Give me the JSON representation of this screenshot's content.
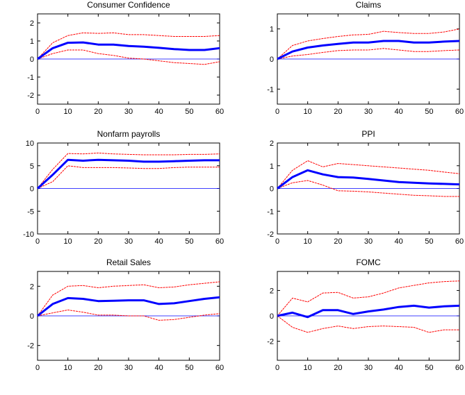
{
  "chart_data": [
    {
      "type": "line",
      "title": "Consumer Confidence",
      "xlim": [
        0,
        60
      ],
      "ylim": [
        -2.5,
        2.5
      ],
      "xticks": [
        0,
        10,
        20,
        30,
        40,
        50,
        60
      ],
      "yticks": [
        -2,
        -1,
        0,
        1,
        2
      ],
      "series": [
        {
          "role": "estimate",
          "color": "#0000ff",
          "x": [
            0,
            5,
            10,
            15,
            20,
            25,
            30,
            35,
            40,
            45,
            50,
            55,
            60
          ],
          "y": [
            0,
            0.6,
            0.9,
            0.92,
            0.8,
            0.8,
            0.72,
            0.68,
            0.62,
            0.55,
            0.5,
            0.5,
            0.6
          ]
        },
        {
          "role": "upper",
          "color": "#ff0000",
          "x": [
            0,
            5,
            10,
            15,
            20,
            25,
            30,
            35,
            40,
            45,
            50,
            55,
            60
          ],
          "y": [
            0,
            0.9,
            1.3,
            1.45,
            1.42,
            1.45,
            1.35,
            1.35,
            1.3,
            1.25,
            1.25,
            1.25,
            1.3
          ]
        },
        {
          "role": "lower",
          "color": "#ff0000",
          "x": [
            0,
            5,
            10,
            15,
            20,
            25,
            30,
            35,
            40,
            45,
            50,
            55,
            60
          ],
          "y": [
            0,
            0.3,
            0.5,
            0.5,
            0.3,
            0.2,
            0.05,
            0.0,
            -0.1,
            -0.2,
            -0.25,
            -0.3,
            -0.15
          ]
        }
      ]
    },
    {
      "type": "line",
      "title": "Claims",
      "xlim": [
        0,
        60
      ],
      "ylim": [
        -1.5,
        1.5
      ],
      "xticks": [
        0,
        10,
        20,
        30,
        40,
        50,
        60
      ],
      "yticks": [
        -1,
        0,
        1
      ],
      "series": [
        {
          "role": "estimate",
          "color": "#0000ff",
          "x": [
            0,
            5,
            10,
            15,
            20,
            25,
            30,
            35,
            40,
            45,
            50,
            55,
            60
          ],
          "y": [
            0,
            0.25,
            0.38,
            0.45,
            0.5,
            0.55,
            0.55,
            0.6,
            0.6,
            0.55,
            0.55,
            0.58,
            0.6
          ]
        },
        {
          "role": "upper",
          "color": "#ff0000",
          "x": [
            0,
            5,
            10,
            15,
            20,
            25,
            30,
            35,
            40,
            45,
            50,
            55,
            60
          ],
          "y": [
            0,
            0.45,
            0.6,
            0.68,
            0.75,
            0.8,
            0.82,
            0.92,
            0.88,
            0.85,
            0.85,
            0.9,
            1.0
          ]
        },
        {
          "role": "lower",
          "color": "#ff0000",
          "x": [
            0,
            5,
            10,
            15,
            20,
            25,
            30,
            35,
            40,
            45,
            50,
            55,
            60
          ],
          "y": [
            0,
            0.1,
            0.15,
            0.22,
            0.28,
            0.3,
            0.3,
            0.35,
            0.3,
            0.25,
            0.25,
            0.28,
            0.3
          ]
        }
      ]
    },
    {
      "type": "line",
      "title": "Nonfarm payrolls",
      "xlim": [
        0,
        60
      ],
      "ylim": [
        -10,
        10
      ],
      "xticks": [
        0,
        10,
        20,
        30,
        40,
        50,
        60
      ],
      "yticks": [
        -10,
        -5,
        0,
        5,
        10
      ],
      "series": [
        {
          "role": "estimate",
          "color": "#0000ff",
          "x": [
            0,
            5,
            10,
            15,
            20,
            25,
            30,
            35,
            40,
            45,
            50,
            55,
            60
          ],
          "y": [
            0,
            3.0,
            6.3,
            6.1,
            6.3,
            6.2,
            6.1,
            5.9,
            5.9,
            6.0,
            6.1,
            6.2,
            6.2
          ]
        },
        {
          "role": "upper",
          "color": "#ff0000",
          "x": [
            0,
            5,
            10,
            15,
            20,
            25,
            30,
            35,
            40,
            45,
            50,
            55,
            60
          ],
          "y": [
            0,
            4.2,
            7.7,
            7.6,
            7.8,
            7.6,
            7.5,
            7.4,
            7.4,
            7.4,
            7.5,
            7.5,
            7.6
          ]
        },
        {
          "role": "lower",
          "color": "#ff0000",
          "x": [
            0,
            5,
            10,
            15,
            20,
            25,
            30,
            35,
            40,
            45,
            50,
            55,
            60
          ],
          "y": [
            0,
            1.5,
            5.0,
            4.6,
            4.6,
            4.6,
            4.5,
            4.4,
            4.4,
            4.6,
            4.7,
            4.7,
            4.7
          ]
        }
      ]
    },
    {
      "type": "line",
      "title": "PPI",
      "xlim": [
        0,
        60
      ],
      "ylim": [
        -2,
        2
      ],
      "xticks": [
        0,
        10,
        20,
        30,
        40,
        50,
        60
      ],
      "yticks": [
        -2,
        -1,
        0,
        1,
        2
      ],
      "series": [
        {
          "role": "estimate",
          "color": "#0000ff",
          "x": [
            0,
            5,
            10,
            15,
            20,
            25,
            30,
            35,
            40,
            45,
            50,
            55,
            60
          ],
          "y": [
            0,
            0.5,
            0.8,
            0.62,
            0.5,
            0.48,
            0.42,
            0.35,
            0.28,
            0.25,
            0.22,
            0.2,
            0.18
          ]
        },
        {
          "role": "upper",
          "color": "#ff0000",
          "x": [
            0,
            5,
            10,
            15,
            20,
            25,
            30,
            35,
            40,
            45,
            50,
            55,
            60
          ],
          "y": [
            0,
            0.8,
            1.22,
            0.95,
            1.1,
            1.05,
            1.0,
            0.95,
            0.9,
            0.85,
            0.8,
            0.72,
            0.65
          ]
        },
        {
          "role": "lower",
          "color": "#ff0000",
          "x": [
            0,
            5,
            10,
            15,
            20,
            25,
            30,
            35,
            40,
            45,
            50,
            55,
            60
          ],
          "y": [
            0,
            0.25,
            0.35,
            0.15,
            -0.1,
            -0.12,
            -0.15,
            -0.2,
            -0.25,
            -0.3,
            -0.32,
            -0.35,
            -0.35
          ]
        }
      ]
    },
    {
      "type": "line",
      "title": "Retail Sales",
      "xlim": [
        0,
        60
      ],
      "ylim": [
        -3,
        3
      ],
      "xticks": [
        0,
        10,
        20,
        30,
        40,
        50,
        60
      ],
      "yticks": [
        -2,
        0,
        2
      ],
      "series": [
        {
          "role": "estimate",
          "color": "#0000ff",
          "x": [
            0,
            5,
            10,
            15,
            20,
            25,
            30,
            35,
            40,
            45,
            50,
            55,
            60
          ],
          "y": [
            0,
            0.8,
            1.2,
            1.15,
            1.0,
            1.02,
            1.05,
            1.05,
            0.8,
            0.85,
            1.0,
            1.15,
            1.25
          ]
        },
        {
          "role": "upper",
          "color": "#ff0000",
          "x": [
            0,
            5,
            10,
            15,
            20,
            25,
            30,
            35,
            40,
            45,
            50,
            55,
            60
          ],
          "y": [
            0,
            1.4,
            2.0,
            2.05,
            1.9,
            2.0,
            2.05,
            2.1,
            1.9,
            1.95,
            2.1,
            2.2,
            2.3
          ]
        },
        {
          "role": "lower",
          "color": "#ff0000",
          "x": [
            0,
            5,
            10,
            15,
            20,
            25,
            30,
            35,
            40,
            45,
            50,
            55,
            60
          ],
          "y": [
            0,
            0.2,
            0.4,
            0.25,
            0.05,
            0.05,
            0.0,
            0.0,
            -0.3,
            -0.25,
            -0.1,
            0.05,
            0.15
          ]
        }
      ]
    },
    {
      "type": "line",
      "title": "FOMC",
      "xlim": [
        0,
        60
      ],
      "ylim": [
        -3.5,
        3.5
      ],
      "xticks": [
        0,
        10,
        20,
        30,
        40,
        50,
        60
      ],
      "yticks": [
        -2,
        0,
        2
      ],
      "series": [
        {
          "role": "estimate",
          "color": "#0000ff",
          "x": [
            0,
            5,
            10,
            15,
            20,
            25,
            30,
            35,
            40,
            45,
            50,
            55,
            60
          ],
          "y": [
            0,
            0.25,
            -0.1,
            0.45,
            0.45,
            0.15,
            0.35,
            0.5,
            0.7,
            0.8,
            0.65,
            0.75,
            0.8
          ]
        },
        {
          "role": "upper",
          "color": "#ff0000",
          "x": [
            0,
            5,
            10,
            15,
            20,
            25,
            30,
            35,
            40,
            45,
            50,
            55,
            60
          ],
          "y": [
            0,
            1.4,
            1.1,
            1.8,
            1.85,
            1.4,
            1.5,
            1.8,
            2.2,
            2.4,
            2.6,
            2.7,
            2.75
          ]
        },
        {
          "role": "lower",
          "color": "#ff0000",
          "x": [
            0,
            5,
            10,
            15,
            20,
            25,
            30,
            35,
            40,
            45,
            50,
            55,
            60
          ],
          "y": [
            0,
            -0.9,
            -1.3,
            -1.0,
            -0.8,
            -1.0,
            -0.85,
            -0.8,
            -0.85,
            -0.9,
            -1.3,
            -1.1,
            -1.1
          ]
        }
      ]
    }
  ]
}
